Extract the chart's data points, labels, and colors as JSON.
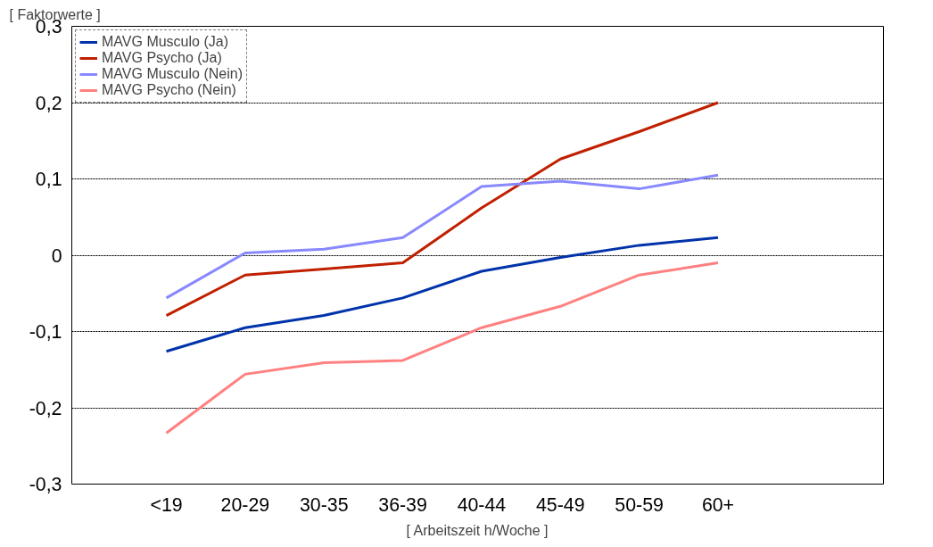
{
  "chart_data": {
    "type": "line",
    "ylabel": "[ Faktorwerte ]",
    "xlabel": "[ Arbeitszeit h/Woche ]",
    "categories": [
      "<19",
      "20-29",
      "30-35",
      "36-39",
      "40-44",
      "45-49",
      "50-59",
      "60+"
    ],
    "series": [
      {
        "name": "MAVG Musculo (Ja)",
        "color": "#0033aa",
        "values": [
          -0.126,
          -0.095,
          -0.079,
          -0.056,
          -0.021,
          -0.003,
          0.013,
          0.023
        ]
      },
      {
        "name": "MAVG Psycho (Ja)",
        "color": "#c02000",
        "values": [
          -0.079,
          -0.026,
          -0.018,
          -0.01,
          0.062,
          0.126,
          0.162,
          0.2
        ]
      },
      {
        "name": "MAVG Musculo (Nein)",
        "color": "#8888ff",
        "values": [
          -0.056,
          0.003,
          0.008,
          0.023,
          0.09,
          0.097,
          0.087,
          0.105
        ]
      },
      {
        "name": "MAVG Psycho (Nein)",
        "color": "#ff8080",
        "values": [
          -0.233,
          -0.156,
          -0.141,
          -0.138,
          -0.095,
          -0.067,
          -0.026,
          -0.01
        ]
      }
    ],
    "ylim": [
      -0.3,
      0.3
    ],
    "yticks": [
      {
        "value": -0.3,
        "label": "-0,3"
      },
      {
        "value": -0.2,
        "label": "-0,2"
      },
      {
        "value": -0.1,
        "label": "-0,1"
      },
      0,
      {
        "value": 0.1,
        "label": "0,1"
      },
      {
        "value": 0.2,
        "label": "0,2"
      },
      {
        "value": 0.3,
        "label": "0,3"
      }
    ],
    "grid": "y",
    "legend": "top left",
    "line_style": "solid",
    "marker": "none"
  }
}
